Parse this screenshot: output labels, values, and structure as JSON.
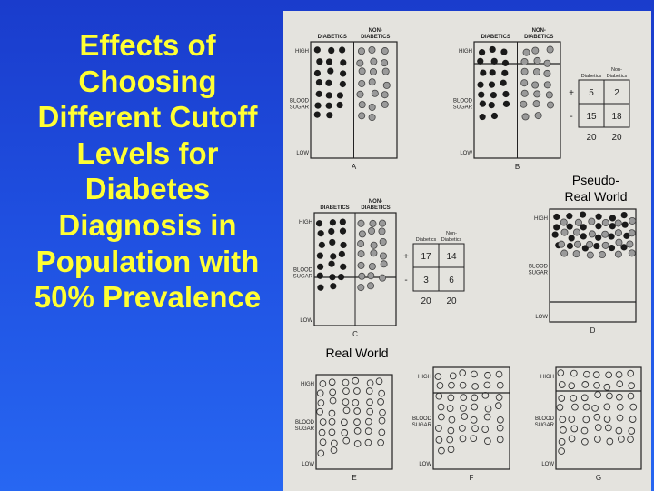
{
  "title_lines": [
    "Effects of",
    "Choosing",
    "Different Cutoff",
    "Levels for",
    "Diabetes",
    "Diagnosis in",
    "Population with",
    "50% Prevalence"
  ],
  "captions": {
    "pseudo_real_world": [
      "Pseudo-",
      "Real World"
    ],
    "real_world": "Real World"
  },
  "panel_labels": {
    "diabetics": "DIABETICS",
    "non_diabetics": [
      "NON-",
      "DIABETICS"
    ],
    "high": "HIGH",
    "blood_sugar": [
      "BLOOD",
      "SUGAR"
    ],
    "low": "LOW",
    "letters": [
      "A",
      "B",
      "C",
      "D",
      "E",
      "F",
      "G"
    ]
  },
  "table_b": {
    "col_diabetics": "Diabetics",
    "col_non": [
      "Non-",
      "Diabetics"
    ],
    "rows": [
      {
        "sign": "+",
        "values": [
          "5",
          "2"
        ]
      },
      {
        "sign": "-",
        "values": [
          "15",
          "18"
        ]
      }
    ],
    "totals": [
      "20",
      "20"
    ]
  },
  "table_c": {
    "col_diabetics": "Diabetics",
    "col_non": [
      "Non-",
      "Diabetics"
    ],
    "rows": [
      {
        "sign": "+",
        "values": [
          "17",
          "14"
        ]
      },
      {
        "sign": "-",
        "values": [
          "3",
          "6"
        ]
      }
    ],
    "totals": [
      "20",
      "20"
    ]
  },
  "colors": {
    "background": "#1f4fe0",
    "title": "#ffff33",
    "scan_paper": "#e4e3de",
    "ink": "#222222"
  }
}
